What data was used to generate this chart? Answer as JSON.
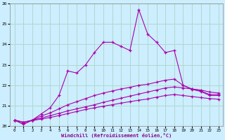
{
  "xlabel": "Windchill (Refroidissement éolien,°C)",
  "background_color": "#cceeff",
  "grid_color": "#b0d8cc",
  "line_color": "#aa00aa",
  "x": [
    0,
    1,
    2,
    3,
    4,
    5,
    6,
    7,
    8,
    9,
    10,
    11,
    12,
    13,
    14,
    15,
    16,
    17,
    18,
    19,
    20,
    21,
    22,
    23
  ],
  "line1": [
    20.3,
    20.1,
    20.3,
    20.6,
    20.9,
    21.5,
    22.7,
    22.6,
    23.0,
    23.6,
    24.1,
    24.1,
    23.9,
    23.7,
    25.7,
    24.5,
    24.1,
    23.6,
    23.7,
    22.0,
    21.8,
    21.7,
    21.5,
    21.5
  ],
  "line2": [
    20.3,
    20.1,
    20.3,
    20.5,
    20.65,
    20.85,
    21.05,
    21.2,
    21.35,
    21.5,
    21.62,
    21.72,
    21.82,
    21.9,
    22.0,
    22.05,
    22.15,
    22.25,
    22.3,
    22.0,
    21.82,
    21.72,
    21.55,
    21.55
  ],
  "line3": [
    20.3,
    20.2,
    20.3,
    20.4,
    20.52,
    20.63,
    20.75,
    20.85,
    20.95,
    21.05,
    21.17,
    21.27,
    21.37,
    21.47,
    21.57,
    21.67,
    21.77,
    21.87,
    21.92,
    21.87,
    21.82,
    21.77,
    21.67,
    21.62
  ],
  "line4": [
    20.3,
    20.2,
    20.28,
    20.35,
    20.43,
    20.52,
    20.62,
    20.72,
    20.82,
    20.9,
    20.98,
    21.05,
    21.13,
    21.2,
    21.27,
    21.33,
    21.42,
    21.5,
    21.55,
    21.5,
    21.45,
    21.4,
    21.35,
    21.32
  ],
  "ylim": [
    20.0,
    26.0
  ],
  "xlim": [
    -0.5,
    23.5
  ],
  "yticks": [
    20,
    21,
    22,
    23,
    24,
    25,
    26
  ],
  "xticks": [
    0,
    1,
    2,
    3,
    4,
    5,
    6,
    7,
    8,
    9,
    10,
    11,
    12,
    13,
    14,
    15,
    16,
    17,
    18,
    19,
    20,
    21,
    22,
    23
  ]
}
